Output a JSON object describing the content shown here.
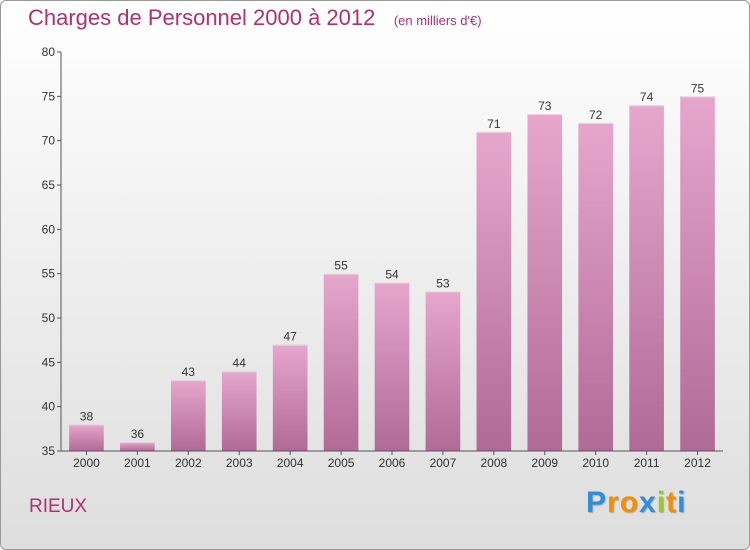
{
  "chart_data": {
    "type": "bar",
    "title": "Charges de Personnel 2000 à 2012",
    "subtitle": "(en milliers d'€)",
    "categories": [
      "2000",
      "2001",
      "2002",
      "2003",
      "2004",
      "2005",
      "2006",
      "2007",
      "2008",
      "2009",
      "2010",
      "2011",
      "2012"
    ],
    "values": [
      38,
      36,
      43,
      44,
      47,
      55,
      54,
      53,
      71,
      73,
      72,
      74,
      75
    ],
    "ylim": [
      35,
      80
    ],
    "yticks": [
      35,
      40,
      45,
      50,
      55,
      60,
      65,
      70,
      75,
      80
    ],
    "grid": false,
    "xlabel": "",
    "ylabel": "",
    "bar_color_top": "#e7a7cd",
    "bar_color_bottom": "#b06a96",
    "text_color": "#b03070"
  },
  "footer": {
    "place": "RIEUX",
    "brand_letters": [
      "P",
      "r",
      "o",
      "x",
      "i",
      "t",
      "i"
    ],
    "brand_colors": [
      "#2f8fd8",
      "#f29000",
      "#f29000",
      "#2f8fd8",
      "#9bc630",
      "#f29000",
      "#2f8fd8"
    ]
  }
}
